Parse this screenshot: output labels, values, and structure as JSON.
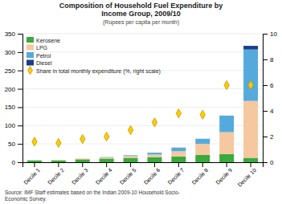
{
  "chart_data": {
    "type": "bar",
    "stacked": true,
    "title": "Composition of Household Fuel Expenditure by\nIncome Group, 2009/10",
    "subtitle": "(Rupees per capita per month)",
    "source": "Source: IMF Staff estimates based on the Indian 2009-10 Household Socio-\nEconomic Survey.",
    "categories": [
      "Decile 1",
      "Decile 2",
      "Decile 3",
      "Decile 4",
      "Decile 5",
      "Decile 6",
      "Decile 7",
      "Decile 8",
      "Decile 9",
      "Decile 10"
    ],
    "series": [
      {
        "name": "Kerosene",
        "color": "#3aaa3a",
        "values": [
          5,
          5,
          8,
          10,
          12,
          14,
          16,
          20,
          22,
          12
        ]
      },
      {
        "name": "LPG",
        "color": "#f5c8a0",
        "values": [
          0,
          1,
          2,
          3,
          5,
          7,
          14,
          30,
          60,
          155
        ]
      },
      {
        "name": "Petrol",
        "color": "#55aadd",
        "values": [
          0,
          0,
          0,
          1,
          2,
          5,
          10,
          14,
          45,
          140
        ]
      },
      {
        "name": "Diesel",
        "color": "#1a3c8a",
        "values": [
          0,
          0,
          0,
          0,
          0,
          0,
          0,
          0,
          0,
          10
        ]
      },
      {
        "name": "Share in total monthly expenditure (%, right scale)",
        "type": "scatter",
        "axis": "y2",
        "marker": "diamond",
        "color": "#ffcc00",
        "values": [
          1.6,
          1.5,
          1.8,
          2.0,
          2.5,
          3.1,
          3.8,
          3.7,
          6.0,
          6.0
        ]
      }
    ],
    "ylim": [
      0,
      350
    ],
    "yticks": [
      0,
      50,
      100,
      150,
      200,
      250,
      300,
      350
    ],
    "y2lim": [
      0,
      10
    ],
    "y2ticks": [
      0,
      2,
      4,
      6,
      8,
      10
    ],
    "grid": true,
    "legend": "upper left"
  }
}
